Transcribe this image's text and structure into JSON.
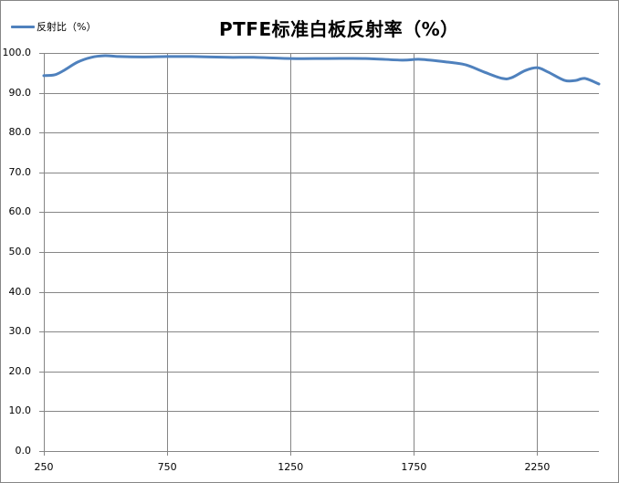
{
  "chart_data": {
    "type": "line",
    "title": "PTFE标准白板反射率（%）",
    "xlabel": "",
    "ylabel": "",
    "xlim": [
      250,
      2500
    ],
    "ylim": [
      0,
      100
    ],
    "grid": true,
    "legend_position": "top-left",
    "x_ticks": [
      "250",
      "750",
      "1250",
      "1750",
      "2250"
    ],
    "y_ticks": [
      "0.0",
      "10.0",
      "20.0",
      "30.0",
      "40.0",
      "50.0",
      "60.0",
      "70.0",
      "80.0",
      "90.0",
      "100.0"
    ],
    "series": [
      {
        "name": "反射比（%）",
        "color": "#4F81BD",
        "x": [
          250,
          294,
          331,
          387,
          443,
          498,
          554,
          650,
          750,
          850,
          998,
          1100,
          1250,
          1400,
          1554,
          1702,
          1776,
          1887,
          1961,
          2035,
          2109,
          2146,
          2202,
          2250,
          2294,
          2361,
          2406,
          2443,
          2500
        ],
        "values": [
          94.3,
          94.5,
          95.6,
          97.7,
          98.9,
          99.3,
          99.1,
          99.0,
          99.1,
          99.1,
          98.9,
          98.9,
          98.6,
          98.6,
          98.6,
          98.2,
          98.4,
          97.7,
          97.0,
          95.2,
          93.6,
          93.8,
          95.6,
          96.3,
          95.2,
          93.1,
          93.1,
          93.6,
          92.2
        ]
      }
    ]
  },
  "legend": {
    "label": "反射比（%）"
  },
  "title": "PTFE标准白板反射率（%）",
  "axes": {
    "y_labels": [
      "100.0",
      "90.0",
      "80.0",
      "70.0",
      "60.0",
      "50.0",
      "40.0",
      "30.0",
      "20.0",
      "10.0",
      "0.0"
    ],
    "x_labels": [
      "250",
      "750",
      "1250",
      "1750",
      "2250"
    ]
  },
  "colors": {
    "line": "#4F81BD",
    "grid": "#868686",
    "border": "#868686"
  }
}
